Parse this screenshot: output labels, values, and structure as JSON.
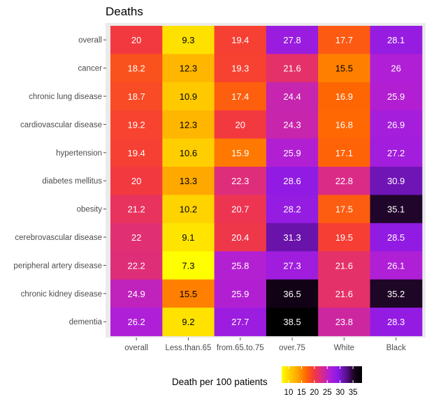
{
  "chart_data": {
    "type": "heatmap",
    "title": "Deaths",
    "columns": [
      "overall",
      "Less.than.65",
      "from.65.to.75",
      "over.75",
      "White",
      "Black"
    ],
    "rows": [
      "overall",
      "cancer",
      "chronic lung disease",
      "cardiovascular disease",
      "hypertension",
      "diabetes mellitus",
      "obesity",
      "cerebrovascular disease",
      "peripheral artery disease",
      "chronic kidney disease",
      "dementia"
    ],
    "values": [
      [
        20,
        9.3,
        19.4,
        27.8,
        17.7,
        28.1
      ],
      [
        18.2,
        12.3,
        19.3,
        21.6,
        15.5,
        26
      ],
      [
        18.7,
        10.9,
        17.4,
        24.4,
        16.9,
        25.9
      ],
      [
        19.2,
        12.3,
        20,
        24.3,
        16.8,
        26.9
      ],
      [
        19.4,
        10.6,
        15.9,
        25.9,
        17.1,
        27.2
      ],
      [
        20,
        13.3,
        22.3,
        28.6,
        22.8,
        30.9
      ],
      [
        21.2,
        10.2,
        20.7,
        28.2,
        17.5,
        35.1
      ],
      [
        22,
        9.1,
        20.4,
        31.3,
        19.5,
        28.5
      ],
      [
        22.2,
        7.3,
        25.8,
        27.3,
        21.6,
        26.1
      ],
      [
        24.9,
        15.5,
        25.9,
        36.5,
        21.6,
        35.2
      ],
      [
        26.2,
        9.2,
        27.7,
        38.5,
        23.8,
        28.3
      ]
    ],
    "color_scale": {
      "name": "Death per 100 patients",
      "limits": [
        7.3,
        38.5
      ],
      "ticks": [
        10,
        15,
        20,
        25,
        30,
        35
      ],
      "palette": [
        "#ffff00",
        "#ffd000",
        "#ffa500",
        "#ff6a00",
        "#f53a3a",
        "#d92a8a",
        "#b01fd6",
        "#8a1ae6",
        "#5a1090",
        "#1a0520",
        "#000000"
      ]
    },
    "legend_position": "bottom",
    "panel_background": "#ebebeb"
  }
}
